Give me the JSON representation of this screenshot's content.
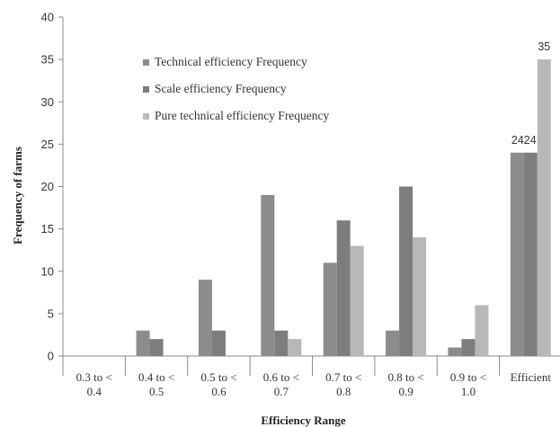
{
  "chart_data": {
    "type": "bar",
    "categories": [
      [
        "0.3 to <",
        "0.4"
      ],
      [
        "0.4 to <",
        "0.5"
      ],
      [
        "0.5 to <",
        "0.6"
      ],
      [
        "0.6 to <",
        "0.7"
      ],
      [
        "0.7 to <",
        "0.8"
      ],
      [
        "0.8 to <",
        "0.9"
      ],
      [
        "0.9 to <",
        "1.0"
      ],
      [
        "Efficient"
      ]
    ],
    "series": [
      {
        "name": "Technical efficiency Frequency",
        "values": [
          0,
          3,
          9,
          19,
          11,
          3,
          1,
          24
        ],
        "color": "#8c8c8c"
      },
      {
        "name": "Scale efficiency Frequency",
        "values": [
          0,
          2,
          3,
          3,
          16,
          20,
          2,
          24
        ],
        "color": "#7d7d7d"
      },
      {
        "name": "Pure technical efficiency Frequency",
        "values": [
          0,
          0,
          0,
          2,
          13,
          14,
          6,
          35
        ],
        "color": "#b8b8b8"
      }
    ],
    "data_labels": [
      {
        "category_index": 7,
        "text": "2424"
      },
      {
        "category_index": 7,
        "text": "35"
      }
    ],
    "xlabel": "Efficiency Range",
    "ylabel": "Frequency of farms",
    "ylim": [
      0,
      40
    ],
    "yticks": [
      0,
      5,
      10,
      15,
      20,
      25,
      30,
      35,
      40
    ],
    "grid": false,
    "legend_position": "top-left"
  }
}
